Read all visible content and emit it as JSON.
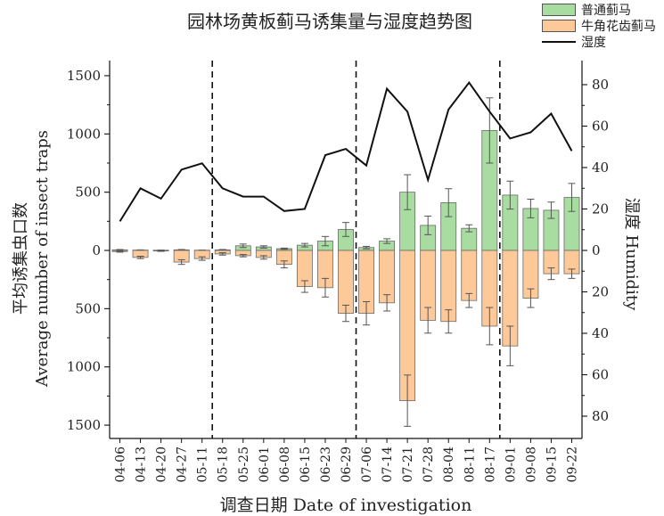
{
  "chart_data": {
    "type": "bar",
    "title": "园林场黄板蓟马诱集量与湿度趋势图",
    "xlabel": "调查日期 Date of investigation",
    "ylabel_cn": "平均诱集虫口数",
    "ylabel_en": "Average number of insect traps",
    "y2label": "湿度 Humidity",
    "categories": [
      "04-06",
      "04-13",
      "04-20",
      "04-27",
      "05-11",
      "05-18",
      "05-25",
      "06-01",
      "06-08",
      "06-15",
      "06-23",
      "06-29",
      "07-06",
      "07-14",
      "07-21",
      "07-28",
      "08-04",
      "08-11",
      "08-17",
      "09-01",
      "09-08",
      "09-15",
      "09-22"
    ],
    "ylim": [
      -1500,
      1500
    ],
    "yticks": [
      -1500,
      -1000,
      -500,
      0,
      500,
      1000,
      1500
    ],
    "yticklabels": [
      "1500",
      "1000",
      "500",
      "0",
      "500",
      "1000",
      "1500"
    ],
    "y2lim": [
      -80,
      80
    ],
    "y2ticks": [
      -80,
      -60,
      -40,
      -20,
      0,
      20,
      40,
      60,
      80
    ],
    "y2ticklabels": [
      "80",
      "60",
      "40",
      "20",
      "0",
      "20",
      "40",
      "60",
      "80"
    ],
    "period_dividers": [
      "05-11|05-18",
      "06-29|07-06",
      "08-17|09-01"
    ],
    "series": [
      {
        "name": "普通蓟马",
        "kind": "bar_up",
        "color": "#a8dca0",
        "values": [
          5,
          3,
          2,
          5,
          2,
          5,
          40,
          30,
          15,
          45,
          80,
          180,
          25,
          80,
          500,
          215,
          410,
          190,
          1030,
          475,
          360,
          345,
          455
        ],
        "errors": [
          3,
          2,
          1,
          3,
          1,
          3,
          15,
          10,
          5,
          15,
          40,
          60,
          10,
          20,
          150,
          80,
          120,
          30,
          280,
          120,
          80,
          70,
          120
        ]
      },
      {
        "name": "牛角花齿蓟马",
        "kind": "bar_down",
        "color": "#fdc999",
        "values": [
          10,
          60,
          5,
          100,
          70,
          30,
          45,
          60,
          120,
          310,
          320,
          540,
          540,
          450,
          1290,
          600,
          610,
          430,
          650,
          820,
          410,
          200,
          200
        ],
        "errors": [
          5,
          10,
          3,
          20,
          15,
          10,
          10,
          15,
          30,
          50,
          80,
          70,
          100,
          70,
          220,
          110,
          100,
          60,
          160,
          170,
          80,
          50,
          40
        ]
      },
      {
        "name": "湿度",
        "kind": "line",
        "color": "#111111",
        "values": [
          14,
          30,
          25,
          39,
          42,
          30,
          26,
          26,
          19,
          20,
          46,
          49,
          41,
          78,
          67,
          34,
          68,
          81,
          67,
          54,
          57,
          66,
          48
        ]
      }
    ]
  }
}
